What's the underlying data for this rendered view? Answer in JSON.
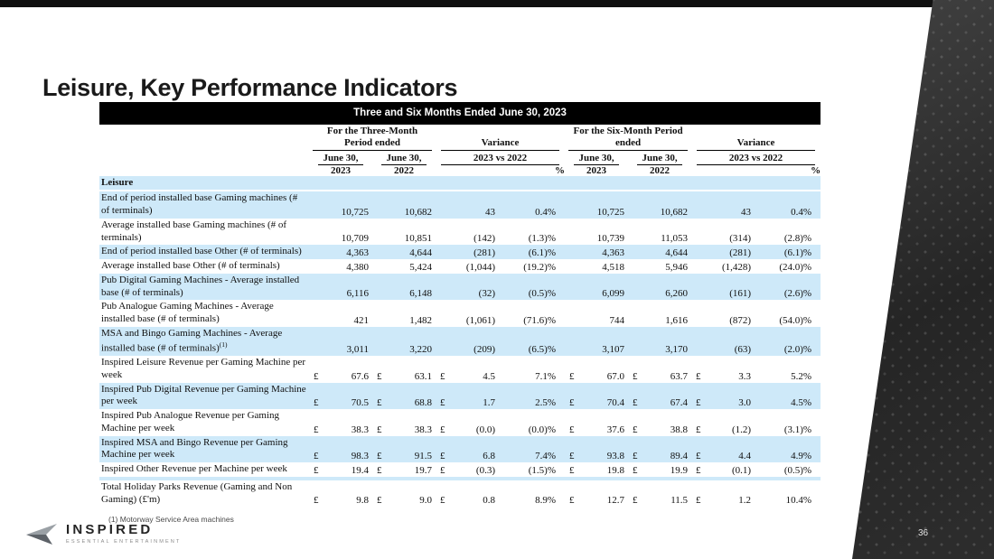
{
  "slide": {
    "title": "Leisure, Key Performance Indicators",
    "page_number": "36",
    "footnote": "(1) Motorway Service Area machines",
    "logo": {
      "brand": "INSPIRED",
      "tagline": "ESSENTIAL ENTERTAINMENT"
    }
  },
  "colors": {
    "row_shade": "#cee9f9",
    "banner_bg": "#000000",
    "wedge_dark": "#2d2d2d"
  },
  "table": {
    "banner": "Three and Six Months Ended June 30, 2023",
    "headers": {
      "three_month_group": "For the Three-Month Period ended",
      "six_month_group": "For the Six-Month Period ended",
      "variance_group": "Variance",
      "variance_sub": "2023 vs 2022",
      "june30": "June 30,",
      "year_2023": "2023",
      "year_2022": "2022",
      "percent": "%"
    },
    "section_label": "Leisure",
    "currency_symbol": "£",
    "rows": [
      {
        "label": "End of period installed base Gaming machines (# of terminals)",
        "currency": false,
        "shaded": true,
        "tm": [
          "10,725",
          "10,682",
          "43",
          "0.4%"
        ],
        "sm": [
          "10,725",
          "10,682",
          "43",
          "0.4%"
        ]
      },
      {
        "label": "Average installed base Gaming machines (# of terminals)",
        "currency": false,
        "shaded": false,
        "tm": [
          "10,709",
          "10,851",
          "(142)",
          "(1.3)%"
        ],
        "sm": [
          "10,739",
          "11,053",
          "(314)",
          "(2.8)%"
        ]
      },
      {
        "label": "End of period installed base Other (# of terminals)",
        "currency": false,
        "shaded": true,
        "tm": [
          "4,363",
          "4,644",
          "(281)",
          "(6.1)%"
        ],
        "sm": [
          "4,363",
          "4,644",
          "(281)",
          "(6.1)%"
        ]
      },
      {
        "label": "Average installed base Other (# of terminals)",
        "currency": false,
        "shaded": false,
        "tm": [
          "4,380",
          "5,424",
          "(1,044)",
          "(19.2)%"
        ],
        "sm": [
          "4,518",
          "5,946",
          "(1,428)",
          "(24.0)%"
        ]
      },
      {
        "label": "Pub Digital Gaming Machines - Average installed base (# of terminals)",
        "currency": false,
        "shaded": true,
        "tm": [
          "6,116",
          "6,148",
          "(32)",
          "(0.5)%"
        ],
        "sm": [
          "6,099",
          "6,260",
          "(161)",
          "(2.6)%"
        ]
      },
      {
        "label": "Pub Analogue Gaming Machines - Average installed base (# of terminals)",
        "currency": false,
        "shaded": false,
        "tm": [
          "421",
          "1,482",
          "(1,061)",
          "(71.6)%"
        ],
        "sm": [
          "744",
          "1,616",
          "(872)",
          "(54.0)%"
        ]
      },
      {
        "label": "MSA and Bingo Gaming Machines - Average installed base (# of terminals)",
        "sup": "(1)",
        "currency": false,
        "shaded": true,
        "tm": [
          "3,011",
          "3,220",
          "(209)",
          "(6.5)%"
        ],
        "sm": [
          "3,107",
          "3,170",
          "(63)",
          "(2.0)%"
        ]
      },
      {
        "label": "Inspired Leisure Revenue per Gaming Machine per week",
        "currency": true,
        "shaded": false,
        "tm": [
          "67.6",
          "63.1",
          "4.5",
          "7.1%"
        ],
        "sm": [
          "67.0",
          "63.7",
          "3.3",
          "5.2%"
        ]
      },
      {
        "label": "Inspired Pub Digital Revenue per Gaming Machine per week",
        "currency": true,
        "shaded": true,
        "tm": [
          "70.5",
          "68.8",
          "1.7",
          "2.5%"
        ],
        "sm": [
          "70.4",
          "67.4",
          "3.0",
          "4.5%"
        ]
      },
      {
        "label": "Inspired Pub Analogue Revenue per Gaming Machine per week",
        "currency": true,
        "shaded": false,
        "tm": [
          "38.3",
          "38.3",
          "(0.0)",
          "(0.0)%"
        ],
        "sm": [
          "37.6",
          "38.8",
          "(1.2)",
          "(3.1)%"
        ]
      },
      {
        "label": "Inspired MSA and Bingo Revenue per Gaming Machine per week",
        "currency": true,
        "shaded": true,
        "tm": [
          "98.3",
          "91.5",
          "6.8",
          "7.4%"
        ],
        "sm": [
          "93.8",
          "89.4",
          "4.4",
          "4.9%"
        ]
      },
      {
        "label": "Inspired Other Revenue per Machine per week",
        "currency": true,
        "shaded": false,
        "tm": [
          "19.4",
          "19.7",
          "(0.3)",
          "(1.5)%"
        ],
        "sm": [
          "19.8",
          "19.9",
          "(0.1)",
          "(0.5)%"
        ]
      },
      {
        "separator": true
      },
      {
        "label": "Total Holiday Parks Revenue (Gaming and Non Gaming) (£'m)",
        "currency": true,
        "shaded": false,
        "tm": [
          "9.8",
          "9.0",
          "0.8",
          "8.9%"
        ],
        "sm": [
          "12.7",
          "11.5",
          "1.2",
          "10.4%"
        ]
      }
    ]
  }
}
